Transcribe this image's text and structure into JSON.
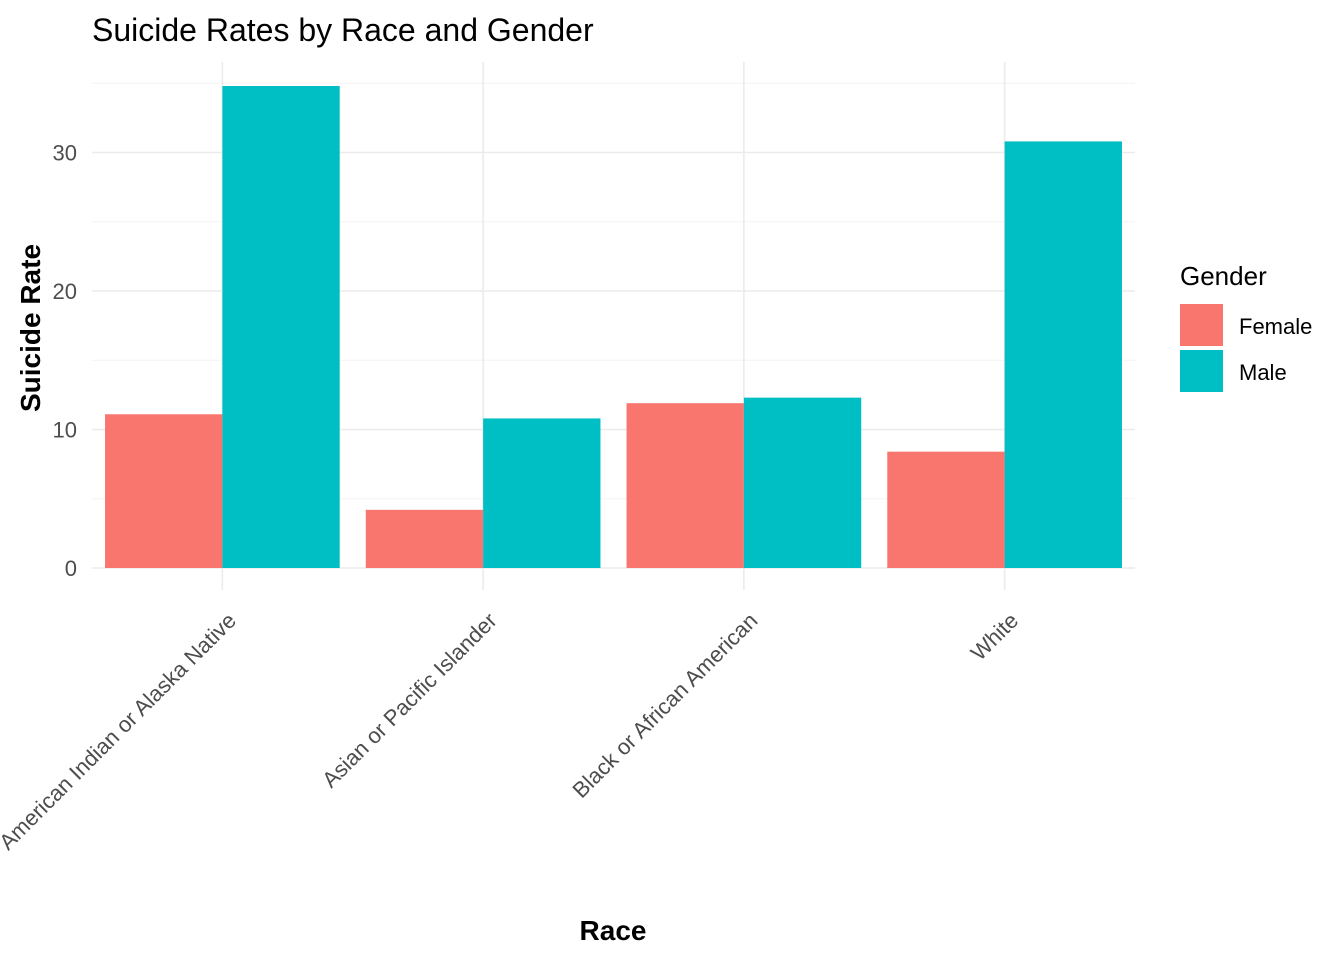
{
  "chart_data": {
    "type": "bar",
    "title": "Suicide Rates by Race and Gender",
    "xlabel": "Race",
    "ylabel": "Suicide Rate",
    "categories": [
      "American Indian or Alaska Native",
      "Asian or Pacific Islander",
      "Black or African American",
      "White"
    ],
    "series": [
      {
        "name": "Female",
        "color": "#F8766D",
        "values": [
          11.1,
          4.2,
          11.9,
          8.4
        ]
      },
      {
        "name": "Male",
        "color": "#00BFC4",
        "values": [
          34.8,
          10.8,
          12.3,
          30.8
        ]
      }
    ],
    "ylim": [
      0,
      36
    ],
    "yticks": [
      0,
      10,
      20,
      30
    ],
    "ytick_labels": [
      "0",
      "10",
      "20",
      "30"
    ],
    "grid": true,
    "legend": {
      "title": "Gender",
      "position": "right"
    }
  }
}
